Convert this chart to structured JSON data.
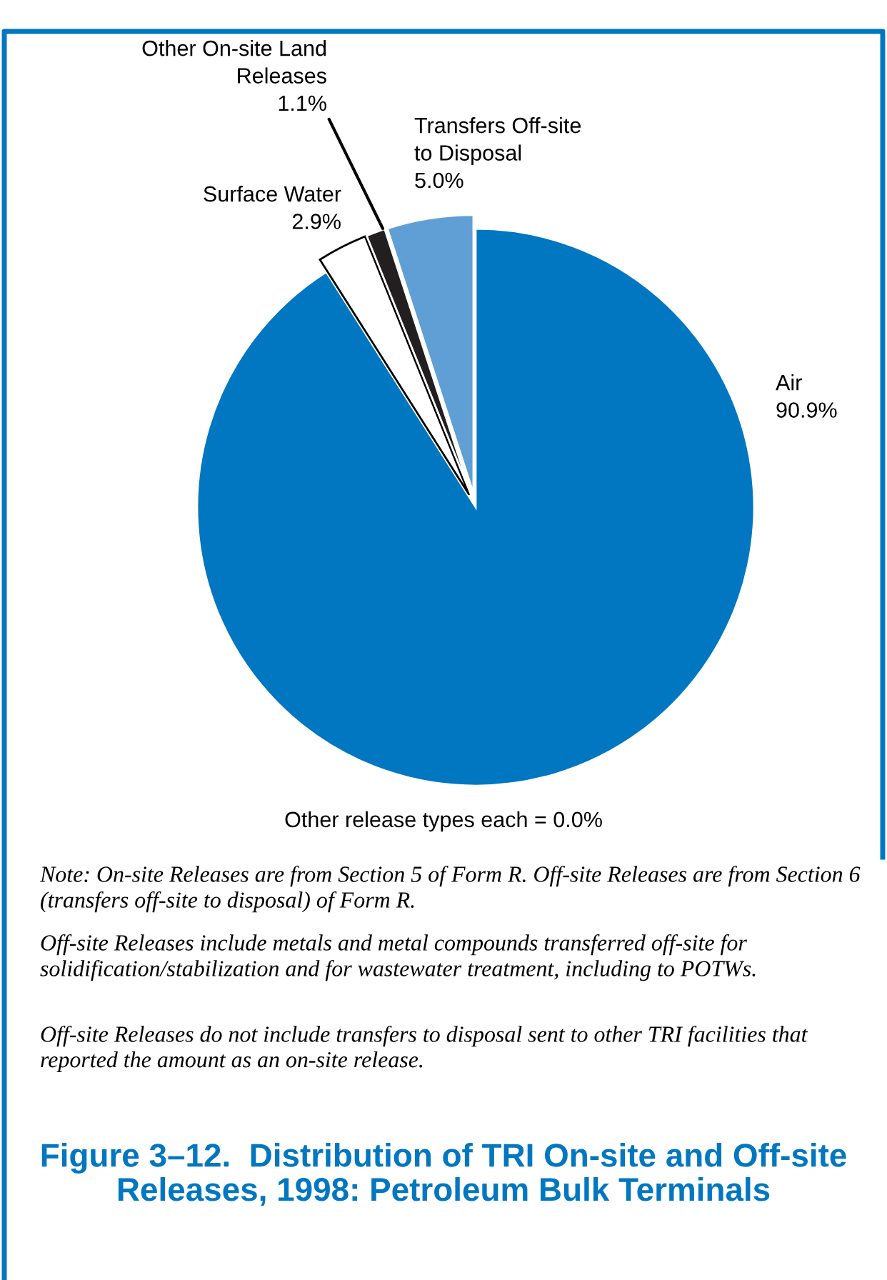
{
  "chart_data": {
    "type": "pie",
    "title": "Figure 3–12.  Distribution of TRI On-site and Off-site Releases, 1998: Petroleum Bulk Terminals",
    "categories": [
      "Air",
      "Surface Water",
      "Other On-site Land\nReleases",
      "Transfers Off-site\nto Disposal"
    ],
    "values": [
      90.9,
      2.9,
      1.1,
      5.0
    ],
    "colors": [
      "#0077c0",
      "#ffffff",
      "#231f20",
      "#5f9fd6"
    ],
    "value_labels": [
      "90.9%",
      "2.9%",
      "1.1%",
      "5.0%"
    ],
    "annotations": [
      "Other release types each = 0.0%",
      "Note: On-site Releases are from Section 5 of Form R. Off-site Releases are from Section 6 (transfers off-site to disposal) of Form R.",
      "Off-site Releases include metals and metal compounds transferred off-site for solidification/stabilization and for wastewater treatment, including to POTWs.",
      "Off-site Releases do not include transfers to disposal sent to other TRI facilities that reported the amount as an on-site release."
    ],
    "legend": false
  }
}
